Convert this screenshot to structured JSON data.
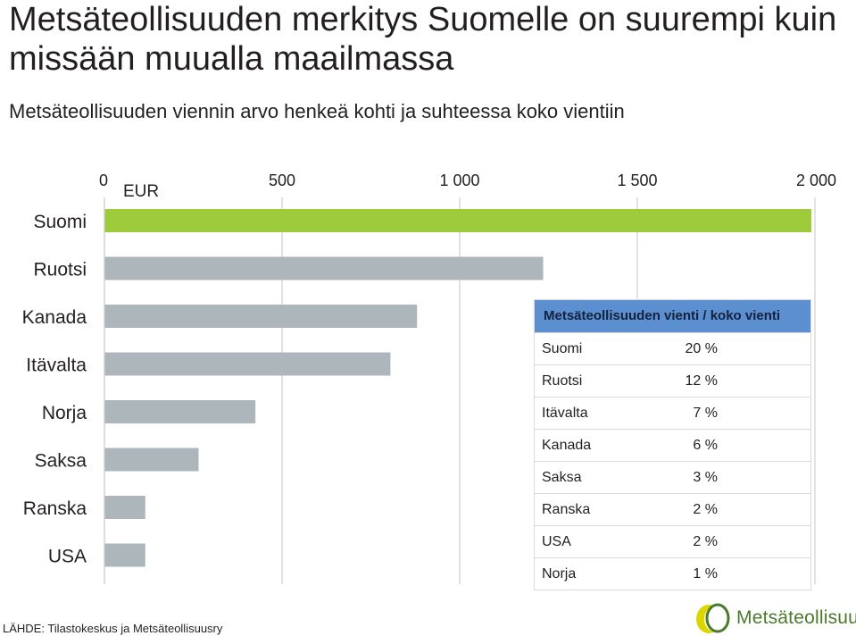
{
  "header": {
    "title": "Metsäteollisuuden merkitys Suomelle on suurempi kuin missään muualla maailmassa",
    "subtitle": "Metsäteollisuuden viennin arvo henkeä kohti ja suhteessa koko vientiin"
  },
  "chart_data": {
    "type": "bar",
    "orientation": "horizontal",
    "unit_label": "EUR",
    "categories": [
      "Suomi",
      "Ruotsi",
      "Kanada",
      "Itävalta",
      "Norja",
      "Saksa",
      "Ranska",
      "USA"
    ],
    "values": [
      1990,
      1235,
      880,
      805,
      425,
      265,
      115,
      115
    ],
    "highlight_category": "Suomi",
    "xlim": [
      0,
      2000
    ],
    "x_ticks": [
      0,
      500,
      1000,
      1500,
      2000
    ],
    "x_tick_labels": [
      "0",
      "500",
      "1 000",
      "1 500",
      "2 000"
    ],
    "axis_position": "top",
    "grid": true,
    "colors": {
      "highlight": "#9ecb3c",
      "default": "#adb6bb",
      "grid": "#cfcfcf"
    }
  },
  "table": {
    "header": "Metsäteollisuuden vienti / koko vienti",
    "rows": [
      {
        "country": "Suomi",
        "share": "20 %"
      },
      {
        "country": "Ruotsi",
        "share": "12 %"
      },
      {
        "country": "Itävalta",
        "share": "7 %"
      },
      {
        "country": "Kanada",
        "share": "6 %"
      },
      {
        "country": "Saksa",
        "share": "3 %"
      },
      {
        "country": "Ranska",
        "share": "2 %"
      },
      {
        "country": "USA",
        "share": "2 %"
      },
      {
        "country": "Norja",
        "share": "1 %"
      }
    ]
  },
  "footer": {
    "source": "LÄHDE: Tilastokeskus ja Metsäteollisuusry",
    "logo_text": "Metsäteollisuus",
    "logo_icon": "leaf-logo-icon"
  },
  "colors": {
    "table_header": "#5b8fcf",
    "logo_green": "#4a7a2a",
    "logo_yellow": "#d9d600"
  }
}
